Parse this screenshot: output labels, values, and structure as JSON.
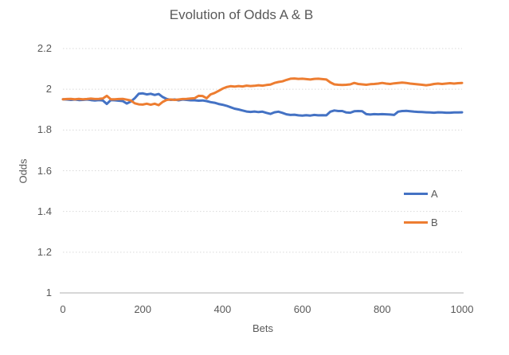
{
  "chart_data": {
    "type": "line",
    "title": "Evolution of Odds A & B",
    "xlabel": "Bets",
    "ylabel": "Odds",
    "xlim": [
      0,
      1000
    ],
    "ylim": [
      1,
      2.2
    ],
    "x_ticks": [
      0,
      200,
      400,
      600,
      800,
      1000
    ],
    "y_ticks": [
      1,
      1.2,
      1.4,
      1.6,
      1.8,
      2,
      2.2
    ],
    "grid": "horizontal dotted gridlines",
    "legend_position": "right",
    "colors": {
      "series_a": "#4472C4",
      "series_b": "#ED7D31",
      "text": "#595959",
      "gridline": "#D9D9D9",
      "axis_line": "#BFBFBF"
    },
    "x": [
      0,
      10,
      20,
      30,
      40,
      50,
      60,
      70,
      80,
      90,
      100,
      110,
      120,
      130,
      140,
      150,
      160,
      170,
      180,
      190,
      200,
      210,
      220,
      230,
      240,
      250,
      260,
      270,
      280,
      290,
      300,
      310,
      320,
      330,
      340,
      350,
      360,
      370,
      380,
      390,
      400,
      410,
      420,
      430,
      440,
      450,
      460,
      470,
      480,
      490,
      500,
      510,
      520,
      530,
      540,
      550,
      560,
      570,
      580,
      590,
      600,
      610,
      620,
      630,
      640,
      650,
      660,
      670,
      680,
      690,
      700,
      710,
      720,
      730,
      740,
      750,
      760,
      770,
      780,
      790,
      800,
      810,
      820,
      830,
      840,
      850,
      860,
      870,
      880,
      890,
      900,
      910,
      920,
      930,
      940,
      950,
      960,
      970,
      980,
      990,
      1000
    ],
    "series": [
      {
        "name": "A",
        "color": "#4472C4",
        "values": [
          1.951,
          1.95,
          1.948,
          1.95,
          1.947,
          1.948,
          1.95,
          1.947,
          1.945,
          1.947,
          1.945,
          1.928,
          1.947,
          1.946,
          1.944,
          1.942,
          1.93,
          1.94,
          1.956,
          1.978,
          1.98,
          1.975,
          1.978,
          1.972,
          1.977,
          1.962,
          1.952,
          1.948,
          1.95,
          1.946,
          1.95,
          1.948,
          1.946,
          1.946,
          1.944,
          1.945,
          1.942,
          1.937,
          1.934,
          1.928,
          1.924,
          1.919,
          1.912,
          1.905,
          1.901,
          1.896,
          1.891,
          1.889,
          1.891,
          1.888,
          1.89,
          1.884,
          1.879,
          1.887,
          1.89,
          1.884,
          1.877,
          1.874,
          1.875,
          1.872,
          1.871,
          1.873,
          1.871,
          1.874,
          1.872,
          1.873,
          1.872,
          1.89,
          1.896,
          1.893,
          1.893,
          1.886,
          1.885,
          1.892,
          1.893,
          1.892,
          1.878,
          1.876,
          1.878,
          1.877,
          1.878,
          1.877,
          1.876,
          1.874,
          1.89,
          1.893,
          1.894,
          1.892,
          1.89,
          1.889,
          1.888,
          1.887,
          1.886,
          1.885,
          1.887,
          1.886,
          1.885,
          1.885,
          1.886,
          1.886,
          1.887
        ]
      },
      {
        "name": "B",
        "color": "#ED7D31",
        "values": [
          1.951,
          1.952,
          1.953,
          1.951,
          1.953,
          1.951,
          1.952,
          1.954,
          1.952,
          1.953,
          1.955,
          1.968,
          1.951,
          1.951,
          1.952,
          1.953,
          1.949,
          1.945,
          1.931,
          1.926,
          1.925,
          1.929,
          1.924,
          1.929,
          1.922,
          1.938,
          1.948,
          1.95,
          1.948,
          1.95,
          1.952,
          1.953,
          1.955,
          1.956,
          1.968,
          1.967,
          1.956,
          1.975,
          1.982,
          1.992,
          2.003,
          2.011,
          2.015,
          2.013,
          2.016,
          2.014,
          2.018,
          2.016,
          2.017,
          2.02,
          2.018,
          2.021,
          2.023,
          2.031,
          2.036,
          2.039,
          2.046,
          2.052,
          2.053,
          2.051,
          2.052,
          2.05,
          2.048,
          2.051,
          2.052,
          2.05,
          2.048,
          2.034,
          2.024,
          2.022,
          2.021,
          2.022,
          2.024,
          2.031,
          2.026,
          2.024,
          2.022,
          2.025,
          2.026,
          2.028,
          2.031,
          2.028,
          2.026,
          2.029,
          2.031,
          2.033,
          2.031,
          2.028,
          2.026,
          2.024,
          2.022,
          2.02,
          2.022,
          2.026,
          2.028,
          2.026,
          2.028,
          2.03,
          2.028,
          2.03,
          2.031
        ]
      }
    ]
  }
}
